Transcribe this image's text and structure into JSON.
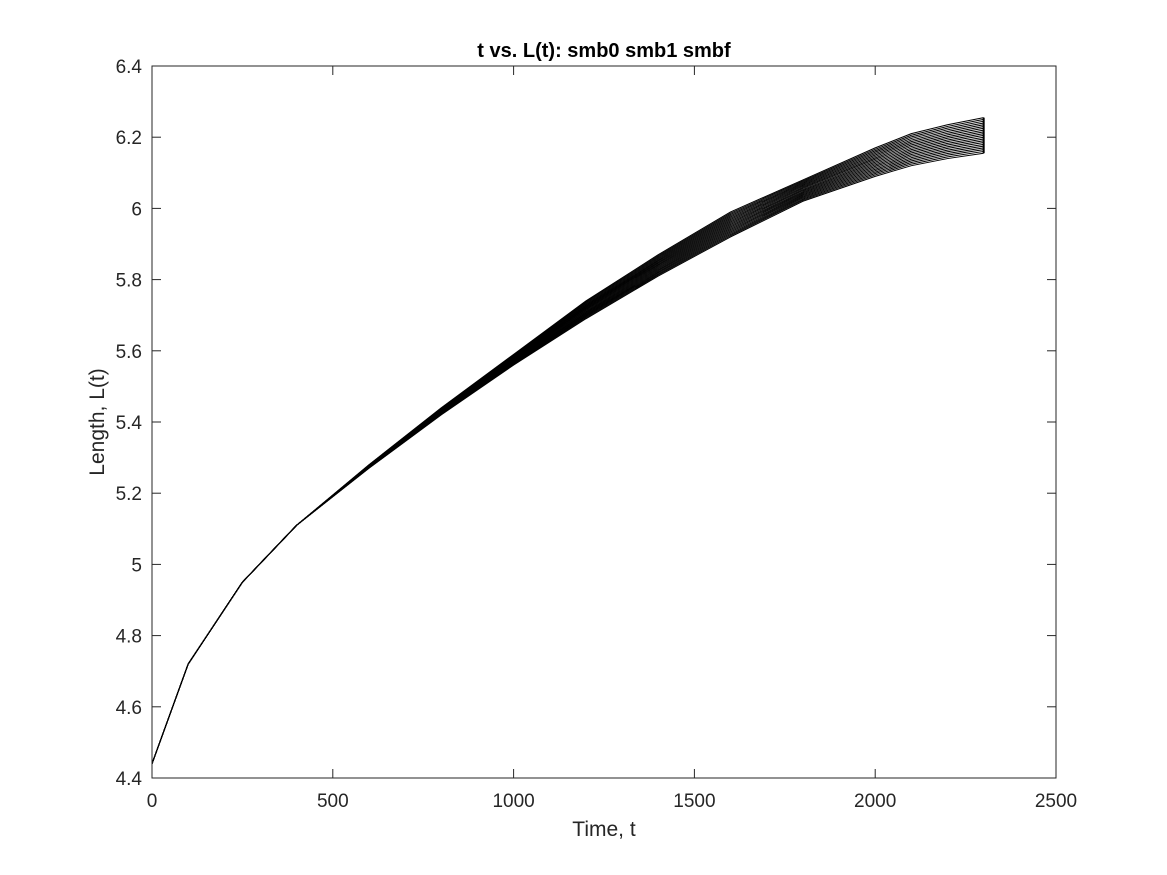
{
  "chart_data": {
    "type": "line",
    "title": "t vs. L(t): smb0 smb1 smbf",
    "xlabel": "Time, t",
    "ylabel": "Length, L(t)",
    "xlim": [
      0,
      2500
    ],
    "ylim": [
      4.4,
      6.4
    ],
    "xticks": [
      0,
      500,
      1000,
      1500,
      2000,
      2500
    ],
    "yticks": [
      4.4,
      4.6,
      4.8,
      5,
      5.2,
      5.4,
      5.6,
      5.8,
      6,
      6.2,
      6.4
    ],
    "xtick_labels": [
      "0",
      "500",
      "1000",
      "1500",
      "2000",
      "2500"
    ],
    "ytick_labels": [
      "4.4",
      "4.6",
      "4.8",
      "5",
      "5.2",
      "5.4",
      "5.6",
      "5.8",
      "6",
      "6.2",
      "6.4"
    ],
    "grid": false,
    "legend": "none",
    "line_color": "#000000",
    "series_count": 21,
    "series_envelope": {
      "x": [
        0,
        100,
        250,
        400,
        600,
        800,
        1000,
        1200,
        1400,
        1600,
        1800,
        2000,
        2100,
        2200,
        2300
      ],
      "y_low": [
        4.44,
        4.72,
        4.95,
        5.11,
        5.27,
        5.42,
        5.56,
        5.69,
        5.81,
        5.92,
        6.02,
        6.09,
        6.12,
        6.14,
        6.155
      ],
      "y_high": [
        4.44,
        4.72,
        4.95,
        5.11,
        5.28,
        5.44,
        5.59,
        5.74,
        5.87,
        5.99,
        6.08,
        6.17,
        6.21,
        6.235,
        6.255
      ]
    }
  }
}
